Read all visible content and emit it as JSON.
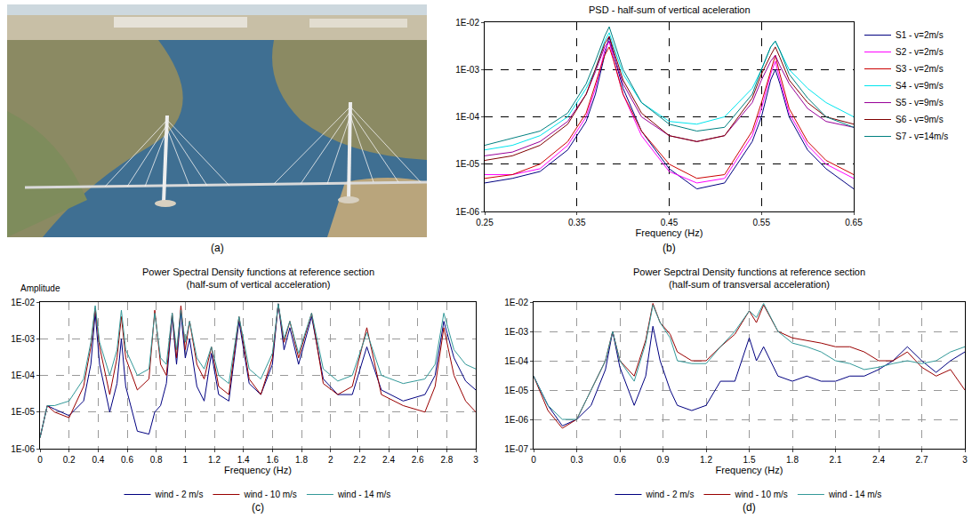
{
  "photo": {
    "label": "(a)"
  },
  "chart_data": [
    {
      "type": "line",
      "panel_label": "(b)",
      "title": "PSD - half-sum of vertical aceleration",
      "x_label": "Frequency (Hz)",
      "log": "y",
      "grid": true,
      "legend": "right",
      "xlim": [
        0.25,
        0.65
      ],
      "xticks": [
        0.25,
        0.35,
        0.45,
        0.55,
        0.65
      ],
      "ylim": [
        1e-06,
        0.01
      ],
      "yticks": [
        {
          "value": 0.01,
          "label": "1E-02"
        },
        {
          "value": 0.001,
          "label": "1E-03"
        },
        {
          "value": 0.0001,
          "label": "1E-04"
        },
        {
          "value": 1e-05,
          "label": "1E-05"
        },
        {
          "value": 1e-06,
          "label": "1E-06"
        }
      ],
      "x": [
        0.25,
        0.28,
        0.31,
        0.34,
        0.36,
        0.37,
        0.38,
        0.385,
        0.39,
        0.4,
        0.42,
        0.45,
        0.48,
        0.51,
        0.54,
        0.55,
        0.56,
        0.565,
        0.57,
        0.58,
        0.6,
        0.62,
        0.65
      ],
      "series": [
        {
          "name": "S1 - v=2m/s",
          "color": "#000080",
          "values": [
            4e-06,
            5e-06,
            7e-06,
            2e-05,
            8e-05,
            0.0003,
            0.002,
            0.005,
            0.002,
            0.0004,
            5e-05,
            8e-06,
            3e-06,
            4e-06,
            3e-05,
            0.0001,
            0.0006,
            0.001,
            0.0005,
            0.0001,
            2e-05,
            8e-06,
            3e-06
          ]
        },
        {
          "name": "S2 - v=2m/s",
          "color": "#ff00ff",
          "values": [
            6e-06,
            6e-06,
            8e-06,
            2.5e-05,
            0.0001,
            0.0004,
            0.0025,
            0.004,
            0.0015,
            0.0003,
            4e-05,
            7e-06,
            4e-06,
            5e-06,
            4e-05,
            0.00015,
            0.0008,
            0.0015,
            0.0006,
            0.00012,
            2.5e-05,
            1e-05,
            5e-06
          ]
        },
        {
          "name": "S3 - v=2m/s",
          "color": "#cc0000",
          "values": [
            5e-06,
            6e-06,
            1e-05,
            3e-05,
            0.00012,
            0.0005,
            0.002,
            0.003,
            0.0015,
            0.0003,
            5e-05,
            1e-05,
            5e-06,
            6e-06,
            5e-05,
            0.0002,
            0.001,
            0.002,
            0.0008,
            0.00015,
            3e-05,
            1.2e-05,
            6e-06
          ]
        },
        {
          "name": "S4 - v=9m/s",
          "color": "#00e5ee",
          "values": [
            2e-05,
            2.5e-05,
            4e-05,
            0.0001,
            0.0004,
            0.001,
            0.004,
            0.006,
            0.003,
            0.0008,
            0.0002,
            8e-05,
            7e-05,
            0.0001,
            0.0004,
            0.001,
            0.003,
            0.004,
            0.0025,
            0.001,
            0.0004,
            0.0002,
            0.0001
          ]
        },
        {
          "name": "S5 - v=9m/s",
          "color": "#990099",
          "values": [
            1.5e-05,
            1.8e-05,
            3e-05,
            8e-05,
            0.0003,
            0.0009,
            0.003,
            0.004,
            0.002,
            0.0005,
            0.0001,
            4e-05,
            3e-05,
            4e-05,
            0.0002,
            0.0006,
            0.0015,
            0.002,
            0.0012,
            0.0005,
            0.00015,
            8e-05,
            6e-05
          ]
        },
        {
          "name": "S6 - v=9m/s",
          "color": "#800000",
          "values": [
            1.2e-05,
            1.5e-05,
            2.5e-05,
            7e-05,
            0.0003,
            0.001,
            0.0035,
            0.005,
            0.0025,
            0.0006,
            0.00012,
            4e-05,
            3e-05,
            4e-05,
            0.00025,
            0.0008,
            0.002,
            0.003,
            0.0018,
            0.0006,
            0.0002,
            0.0001,
            7e-05
          ]
        },
        {
          "name": "S7 - v=14m/s",
          "color": "#008080",
          "values": [
            2.5e-05,
            3.5e-05,
            5e-05,
            0.00012,
            0.0005,
            0.0015,
            0.005,
            0.008,
            0.004,
            0.001,
            0.0002,
            7e-05,
            5e-05,
            6e-05,
            0.0003,
            0.001,
            0.003,
            0.004,
            0.0025,
            0.0008,
            0.00025,
            0.0001,
            6e-05
          ]
        }
      ]
    },
    {
      "type": "line",
      "panel_label": "(c)",
      "title": "Power Spectral Density functions at reference section\n(half-sum of vertical acceleration)",
      "x_label": "Frequency (Hz)",
      "y_label": "Amplitude",
      "log": "y",
      "grid": true,
      "legend": "bottom",
      "xlim": [
        0,
        3
      ],
      "xticks": [
        0,
        0.2,
        0.4,
        0.6,
        0.8,
        1,
        1.2,
        1.4,
        1.6,
        1.8,
        2,
        2.2,
        2.4,
        2.6,
        2.8,
        3
      ],
      "ylim": [
        1e-06,
        0.01
      ],
      "yticks": [
        {
          "value": 0.01,
          "label": "1E-02"
        },
        {
          "value": 0.001,
          "label": "1E-03"
        },
        {
          "value": 0.0001,
          "label": "1E-04"
        },
        {
          "value": 1e-05,
          "label": "1E-05"
        },
        {
          "value": 1e-06,
          "label": "1E-06"
        }
      ],
      "x": [
        0,
        0.05,
        0.1,
        0.2,
        0.3,
        0.35,
        0.38,
        0.41,
        0.48,
        0.53,
        0.56,
        0.59,
        0.67,
        0.75,
        0.79,
        0.83,
        0.87,
        0.91,
        0.94,
        0.97,
        1.0,
        1.03,
        1.08,
        1.13,
        1.18,
        1.23,
        1.3,
        1.37,
        1.44,
        1.52,
        1.6,
        1.64,
        1.68,
        1.72,
        1.78,
        1.87,
        1.95,
        2.05,
        2.15,
        2.25,
        2.35,
        2.5,
        2.65,
        2.72,
        2.78,
        2.85,
        2.93,
        3.0
      ],
      "series": [
        {
          "name": "wind - 2 m/s",
          "color": "#000080",
          "values": [
            2e-06,
            1.5e-05,
            1.2e-05,
            8e-06,
            2e-05,
            0.0002,
            0.005,
            0.0002,
            1e-05,
            6e-05,
            0.001,
            5e-05,
            3e-06,
            2.5e-06,
            1e-05,
            1.5e-05,
            6e-05,
            0.004,
            0.0002,
            0.005,
            0.0003,
            0.001,
            5e-05,
            2e-05,
            0.0004,
            3e-05,
            2e-05,
            0.003,
            6e-05,
            3e-05,
            0.0002,
            0.009,
            0.0005,
            0.002,
            0.0002,
            0.004,
            8e-05,
            3e-05,
            3e-05,
            0.0006,
            4e-05,
            2e-05,
            3e-05,
            0.0001,
            0.003,
            0.0003,
            7e-05,
            4e-05
          ]
        },
        {
          "name": "wind - 10 m/s",
          "color": "#990000",
          "values": [
            2e-06,
            1.5e-05,
            1e-05,
            7e-06,
            5e-05,
            0.0006,
            0.007,
            0.0006,
            3e-05,
            0.0003,
            0.004,
            0.0003,
            4e-05,
            8e-05,
            0.006,
            0.0002,
            0.0001,
            0.005,
            0.0003,
            0.008,
            0.0005,
            0.003,
            0.0002,
            8e-05,
            0.0006,
            5e-05,
            3e-05,
            0.004,
            8e-05,
            3e-05,
            0.0003,
            0.009,
            0.0008,
            0.003,
            0.0003,
            0.005,
            6e-05,
            3e-05,
            5e-05,
            0.002,
            3e-05,
            1.5e-05,
            1e-05,
            5e-05,
            0.002,
            0.0001,
            2e-05,
            1e-05
          ]
        },
        {
          "name": "wind - 14 m/s",
          "color": "#339999",
          "values": [
            2e-06,
            1.5e-05,
            1.5e-05,
            2e-05,
            8e-05,
            0.0008,
            0.008,
            0.0008,
            0.0001,
            0.0005,
            0.006,
            0.0005,
            0.0001,
            0.00015,
            0.005,
            0.0003,
            0.0002,
            0.005,
            0.0005,
            0.006,
            0.0008,
            0.003,
            0.0003,
            0.00015,
            0.0006,
            0.0001,
            6e-05,
            0.004,
            0.00015,
            8e-05,
            0.0004,
            0.009,
            0.001,
            0.003,
            0.0004,
            0.005,
            0.00015,
            7e-05,
            0.0001,
            0.0015,
            0.0001,
            6e-05,
            8e-05,
            0.0002,
            0.005,
            0.0005,
            0.0002,
            0.00015
          ]
        }
      ]
    },
    {
      "type": "line",
      "panel_label": "(d)",
      "title": "Power Sepctral Density functions at reference section\n(half-sum of transversal acceleration)",
      "x_label": "Frequency (Hz)",
      "log": "y",
      "grid": true,
      "legend": "bottom",
      "xlim": [
        0,
        3
      ],
      "xticks": [
        0,
        0.3,
        0.6,
        0.9,
        1.2,
        1.5,
        1.8,
        2.1,
        2.4,
        2.7,
        3
      ],
      "ylim": [
        1e-07,
        0.01
      ],
      "yticks": [
        {
          "value": 0.01,
          "label": "1E-02"
        },
        {
          "value": 0.001,
          "label": "1E-03"
        },
        {
          "value": 0.0001,
          "label": "1E-04"
        },
        {
          "value": 1e-05,
          "label": "1E-05"
        },
        {
          "value": 1e-06,
          "label": "1E-06"
        },
        {
          "value": 1e-07,
          "label": "1E-07"
        }
      ],
      "x": [
        0,
        0.1,
        0.2,
        0.3,
        0.4,
        0.5,
        0.55,
        0.6,
        0.7,
        0.78,
        0.83,
        0.88,
        0.95,
        1.0,
        1.1,
        1.2,
        1.3,
        1.4,
        1.5,
        1.55,
        1.6,
        1.7,
        1.8,
        1.9,
        2.0,
        2.1,
        2.2,
        2.3,
        2.4,
        2.5,
        2.6,
        2.7,
        2.8,
        2.9,
        3.0
      ],
      "series": [
        {
          "name": "wind - 2 m/s",
          "color": "#000080",
          "values": [
            3e-05,
            3e-06,
            6e-07,
            1e-06,
            3e-06,
            5e-05,
            0.001,
            6e-05,
            3e-06,
            3e-05,
            0.0015,
            0.0001,
            1e-05,
            3e-06,
            2e-06,
            3e-06,
            2e-05,
            2e-05,
            0.0006,
            0.0001,
            0.0003,
            3e-05,
            2e-05,
            3e-05,
            2e-05,
            2e-05,
            3e-05,
            3e-05,
            5e-05,
            0.0001,
            0.0003,
            0.0001,
            4e-05,
            0.0001,
            0.0002
          ]
        },
        {
          "name": "wind - 10 m/s",
          "color": "#990000",
          "values": [
            3e-05,
            2e-06,
            5e-07,
            1e-06,
            1e-05,
            0.0001,
            0.001,
            0.0001,
            3e-05,
            0.0005,
            0.009,
            0.002,
            0.0008,
            0.0002,
            0.0001,
            0.0001,
            0.0003,
            0.0008,
            0.005,
            0.002,
            0.008,
            0.001,
            0.0006,
            0.0005,
            0.0004,
            0.0003,
            0.0003,
            0.0002,
            0.0001,
            0.0001,
            0.0002,
            6e-05,
            3e-05,
            5e-05,
            1e-05
          ]
        },
        {
          "name": "wind - 14 m/s",
          "color": "#339999",
          "values": [
            3e-05,
            3e-06,
            1e-06,
            1e-06,
            1e-05,
            0.0001,
            0.001,
            0.0001,
            2e-05,
            0.0004,
            0.008,
            0.002,
            0.0006,
            0.0001,
            8e-05,
            8e-05,
            0.0003,
            0.001,
            0.005,
            0.003,
            0.009,
            0.001,
            0.0004,
            0.0003,
            0.0002,
            0.0001,
            8e-05,
            5e-05,
            6e-05,
            8e-05,
            0.0001,
            8e-05,
            0.0001,
            0.0002,
            0.0003
          ]
        }
      ]
    }
  ]
}
